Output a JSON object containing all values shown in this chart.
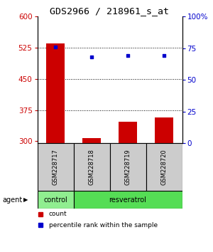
{
  "title": "GDS2966 / 218961_s_at",
  "samples": [
    "GSM228717",
    "GSM228718",
    "GSM228719",
    "GSM228720"
  ],
  "bar_values": [
    535,
    308,
    347,
    357
  ],
  "bar_bottom": 295,
  "scatter_values": [
    76,
    68,
    69,
    69
  ],
  "ylim_left": [
    295,
    600
  ],
  "ylim_right": [
    0,
    100
  ],
  "yticks_left": [
    300,
    375,
    450,
    525,
    600
  ],
  "yticks_right": [
    0,
    25,
    50,
    75,
    100
  ],
  "bar_color": "#cc0000",
  "scatter_color": "#0000cc",
  "agent_groups": [
    {
      "label": "control",
      "span": [
        0,
        1
      ]
    },
    {
      "label": "resveratrol",
      "span": [
        1,
        4
      ]
    }
  ],
  "group_colors": {
    "control": "#90ee90",
    "resveratrol": "#55dd55"
  },
  "sample_row_color": "#cccccc",
  "legend_count_color": "#cc0000",
  "legend_pct_color": "#0000cc",
  "xlabel_agent": "agent",
  "title_fontsize": 9.5,
  "tick_fontsize": 7.5,
  "sample_fontsize": 6.0,
  "agent_fontsize": 7.0,
  "legend_fontsize": 6.5,
  "background_color": "#ffffff"
}
